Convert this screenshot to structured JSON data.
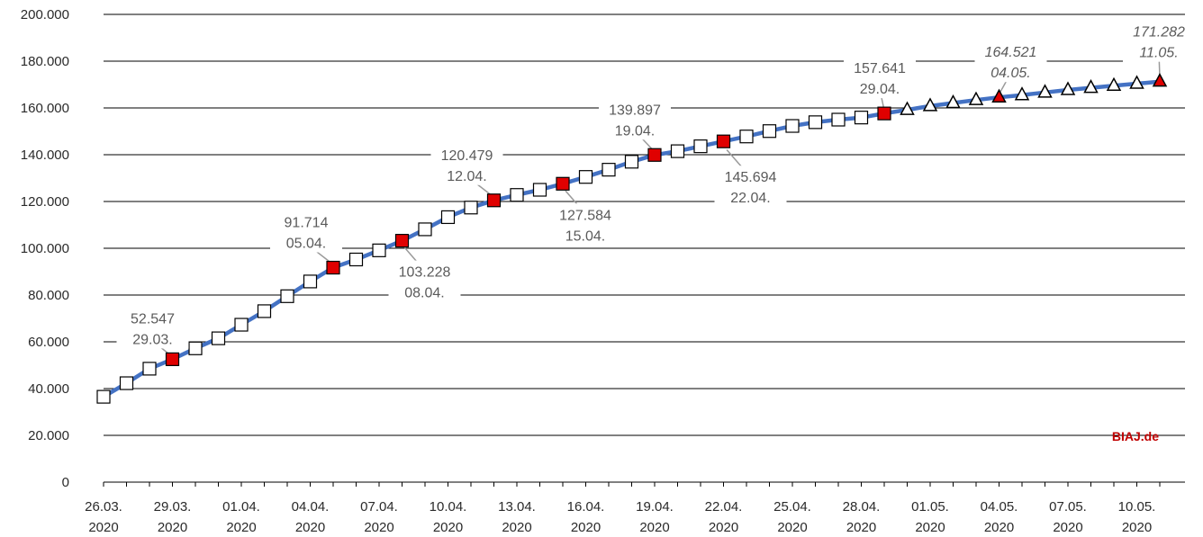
{
  "chart_data": {
    "type": "line",
    "ylim": [
      0,
      200000
    ],
    "ytick_values": [
      0,
      20000,
      40000,
      60000,
      80000,
      100000,
      120000,
      140000,
      160000,
      180000,
      200000
    ],
    "ytick_labels": [
      "0",
      "20.000",
      "40.000",
      "60.000",
      "80.000",
      "100.000",
      "120.000",
      "140.000",
      "160.000",
      "180.000",
      "200.000"
    ],
    "grid": true,
    "xtick_labels": [
      [
        "26.03.",
        "2020"
      ],
      [
        "29.03.",
        "2020"
      ],
      [
        "01.04.",
        "2020"
      ],
      [
        "04.04.",
        "2020"
      ],
      [
        "07.04.",
        "2020"
      ],
      [
        "10.04.",
        "2020"
      ],
      [
        "13.04.",
        "2020"
      ],
      [
        "16.04.",
        "2020"
      ],
      [
        "19.04.",
        "2020"
      ],
      [
        "22.04.",
        "2020"
      ],
      [
        "25.04.",
        "2020"
      ],
      [
        "28.04.",
        "2020"
      ],
      [
        "01.05.",
        "2020"
      ],
      [
        "04.05.",
        "2020"
      ],
      [
        "07.05.",
        "2020"
      ],
      [
        "10.05.",
        "2020"
      ]
    ],
    "x": [
      "26.03.2020",
      "27.03.2020",
      "28.03.2020",
      "29.03.2020",
      "30.03.2020",
      "31.03.2020",
      "01.04.2020",
      "02.04.2020",
      "03.04.2020",
      "04.04.2020",
      "05.04.2020",
      "06.04.2020",
      "07.04.2020",
      "08.04.2020",
      "09.04.2020",
      "10.04.2020",
      "11.04.2020",
      "12.04.2020",
      "13.04.2020",
      "14.04.2020",
      "15.04.2020",
      "16.04.2020",
      "17.04.2020",
      "18.04.2020",
      "19.04.2020",
      "20.04.2020",
      "21.04.2020",
      "22.04.2020",
      "23.04.2020",
      "24.04.2020",
      "25.04.2020",
      "26.04.2020",
      "27.04.2020",
      "28.04.2020",
      "29.04.2020",
      "30.04.2020",
      "01.05.2020",
      "02.05.2020",
      "03.05.2020",
      "04.05.2020",
      "05.05.2020",
      "06.05.2020",
      "07.05.2020",
      "08.05.2020",
      "09.05.2020",
      "10.05.2020",
      "11.05.2020"
    ],
    "values": [
      36500,
      42300,
      48500,
      52547,
      57200,
      61500,
      67300,
      73100,
      79500,
      85800,
      91714,
      95200,
      99100,
      103228,
      108100,
      113300,
      117400,
      120479,
      122800,
      125000,
      127584,
      130500,
      133600,
      137000,
      139897,
      141500,
      143600,
      145694,
      147800,
      150100,
      152300,
      153900,
      155000,
      155900,
      157641,
      159200,
      160800,
      162100,
      163400,
      164521,
      165500,
      166600,
      167700,
      168600,
      169500,
      170400,
      171282
    ],
    "markers": [
      "square",
      "square",
      "square",
      "square",
      "square",
      "square",
      "square",
      "square",
      "square",
      "square",
      "square",
      "square",
      "square",
      "square",
      "square",
      "square",
      "square",
      "square",
      "square",
      "square",
      "square",
      "square",
      "square",
      "square",
      "square",
      "square",
      "square",
      "square",
      "square",
      "square",
      "square",
      "square",
      "square",
      "square",
      "square",
      "triangle",
      "triangle",
      "triangle",
      "triangle",
      "triangle",
      "triangle",
      "triangle",
      "triangle",
      "triangle",
      "triangle",
      "triangle",
      "triangle"
    ],
    "highlighted_indices": [
      3,
      10,
      13,
      17,
      20,
      24,
      27,
      34,
      39,
      46
    ],
    "colors": {
      "line": "#4472c4",
      "highlight_fill": "#e00000",
      "marker_fill": "#ffffff",
      "marker_stroke": "#000000",
      "grid": "#000000",
      "brand": "#c00000"
    },
    "annotations": [
      {
        "index": 3,
        "value": "52.547",
        "date": "29.03.",
        "italic": false
      },
      {
        "index": 10,
        "value": "91.714",
        "date": "05.04.",
        "italic": false
      },
      {
        "index": 13,
        "value": "103.228",
        "date": "08.04.",
        "italic": false
      },
      {
        "index": 17,
        "value": "120.479",
        "date": "12.04.",
        "italic": false
      },
      {
        "index": 20,
        "value": "127.584",
        "date": "15.04.",
        "italic": false
      },
      {
        "index": 24,
        "value": "139.897",
        "date": "19.04.",
        "italic": false
      },
      {
        "index": 27,
        "value": "145.694",
        "date": "22.04.",
        "italic": false
      },
      {
        "index": 34,
        "value": "157.641",
        "date": "29.04.",
        "italic": false
      },
      {
        "index": 39,
        "value": "164.521",
        "date": "04.05.",
        "italic": true
      },
      {
        "index": 46,
        "value": "171.282",
        "date": "11.05.",
        "italic": true
      }
    ],
    "watermark": "BIAJ.de"
  }
}
